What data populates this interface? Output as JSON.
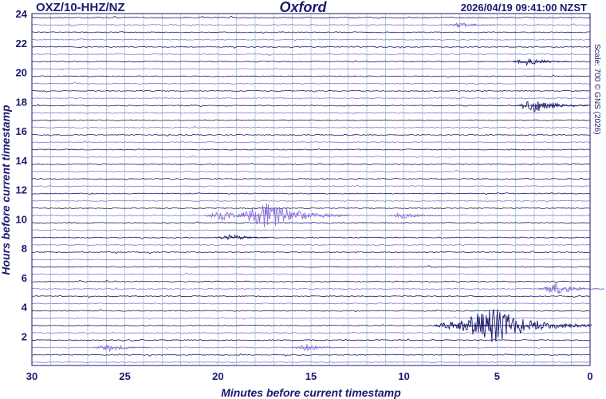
{
  "header": {
    "station": "OXZ/10-HHZ/NZ",
    "place": "Oxford",
    "timestamp": "2026/04/19 09:41:00 NZST",
    "scale": "Scale: 700 © GNS (2026)"
  },
  "colors": {
    "trace_dark": "#1a1a6e",
    "trace_light": "#8b6fd8",
    "grid": "#7fb8c8",
    "axis_text": "#1a1a6e"
  },
  "chart_data": {
    "type": "line",
    "title": "Oxford",
    "xlabel": "Minutes before current timestamp",
    "ylabel": "Hours before current timestamp",
    "xlim": [
      30,
      0
    ],
    "ylim": [
      0,
      24
    ],
    "x_ticks": [
      30,
      25,
      20,
      15,
      10,
      5,
      0
    ],
    "y_ticks": [
      2,
      4,
      6,
      8,
      10,
      12,
      14,
      16,
      18,
      20,
      22,
      24
    ],
    "grid_minutes": 1,
    "trace_rows": 48,
    "row_minutes": 30,
    "events": [
      {
        "hour": 23.5,
        "minute": 7.0,
        "amp": 0.25
      },
      {
        "hour": 20.8,
        "minute": 3.3,
        "amp": 0.35
      },
      {
        "hour": 18.2,
        "minute": 2.9,
        "amp": 0.6
      },
      {
        "hour": 10.3,
        "minute": 17.3,
        "amp": 1.2
      },
      {
        "hour": 10.3,
        "minute": 19.8,
        "amp": 0.4
      },
      {
        "hour": 10.3,
        "minute": 10.0,
        "amp": 0.3
      },
      {
        "hour": 8.8,
        "minute": 19.3,
        "amp": 0.3
      },
      {
        "hour": 3.0,
        "minute": 5.3,
        "amp": 1.6
      },
      {
        "hour": 3.0,
        "minute": 7.5,
        "amp": 0.4
      },
      {
        "hour": 5.6,
        "minute": 1.8,
        "amp": 0.5
      },
      {
        "hour": 1.5,
        "minute": 25.8,
        "amp": 0.35
      },
      {
        "hour": 1.5,
        "minute": 15.2,
        "amp": 0.3
      }
    ]
  }
}
